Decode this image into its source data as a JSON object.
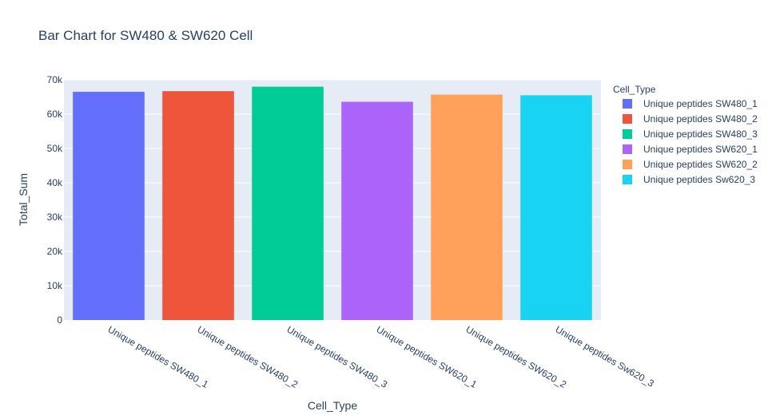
{
  "chart_data": {
    "type": "bar",
    "title": "Bar Chart for SW480 & SW620 Cell",
    "xlabel": "Cell_Type",
    "ylabel": "Total_Sum",
    "ylim": [
      0,
      70000
    ],
    "yticks": [
      0,
      10000,
      20000,
      30000,
      40000,
      50000,
      60000,
      70000
    ],
    "ytick_labels": [
      "0",
      "10k",
      "20k",
      "30k",
      "40k",
      "50k",
      "60k",
      "70k"
    ],
    "categories": [
      "Unique peptides SW480_1",
      "Unique peptides SW480_2",
      "Unique peptides SW480_3",
      "Unique peptides SW620_1",
      "Unique peptides SW620_2",
      "Unique peptides Sw620_3"
    ],
    "values": [
      66500,
      66700,
      68000,
      63600,
      65700,
      65500
    ],
    "colors": [
      "#636efa",
      "#ef553b",
      "#00cc96",
      "#ab63fa",
      "#ffa15a",
      "#19d3f3"
    ],
    "legend": {
      "title": "Cell_Type",
      "placement": "right",
      "entries": [
        "Unique peptides SW480_1",
        "Unique peptides SW480_2",
        "Unique peptides SW480_3",
        "Unique peptides SW620_1",
        "Unique peptides SW620_2",
        "Unique peptides Sw620_3"
      ]
    },
    "grid": true,
    "plot_background": "#e5ecf6"
  }
}
